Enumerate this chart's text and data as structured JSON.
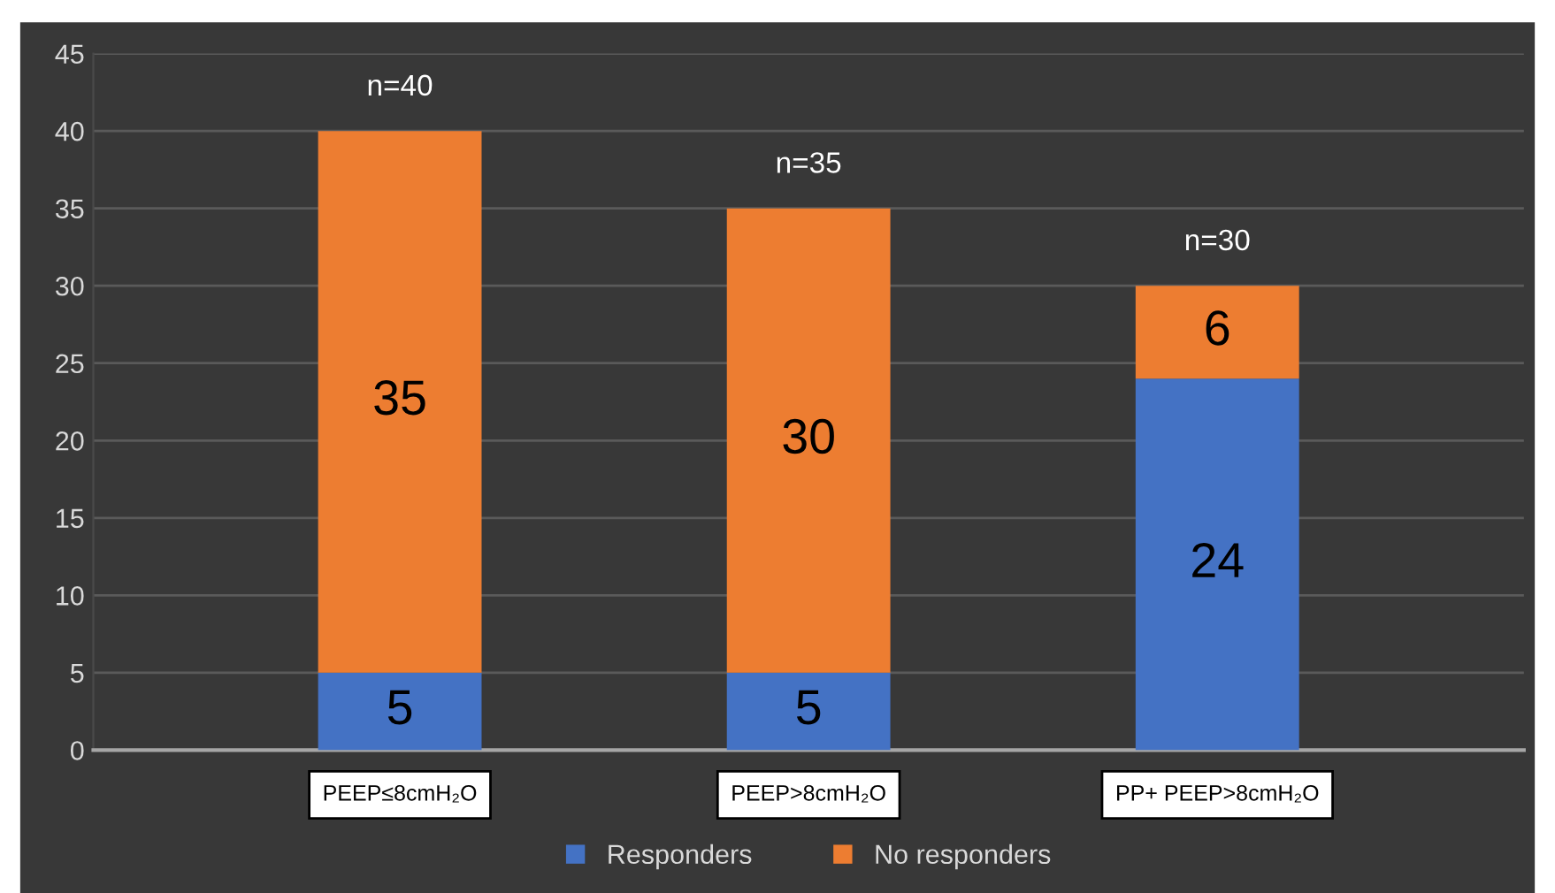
{
  "chart_data": {
    "type": "bar",
    "stacked": true,
    "categories": [
      "PEEP≤8cmH₂O",
      "PEEP>8cmH₂O",
      "PP+ PEEP>8cmH₂O"
    ],
    "series": [
      {
        "name": "Responders",
        "color": "#4472c4",
        "values": [
          5,
          5,
          24
        ]
      },
      {
        "name": "No responders",
        "color": "#ed7d31",
        "values": [
          35,
          30,
          6
        ]
      }
    ],
    "ylim": [
      0,
      45
    ],
    "yticks": [
      0,
      5,
      10,
      15,
      20,
      25,
      30,
      35,
      40,
      45
    ],
    "grid": "y",
    "legend": "bottom",
    "data_labels": true,
    "annotations": [
      {
        "text": "n=40",
        "x": "PEEP≤8cmH₂O",
        "y": 40
      },
      {
        "text": "n=35",
        "x": "PEEP>8cmH₂O",
        "y": 35
      },
      {
        "text": "n=30",
        "x": "PP+ PEEP>8cmH₂O",
        "y": 30
      }
    ]
  }
}
